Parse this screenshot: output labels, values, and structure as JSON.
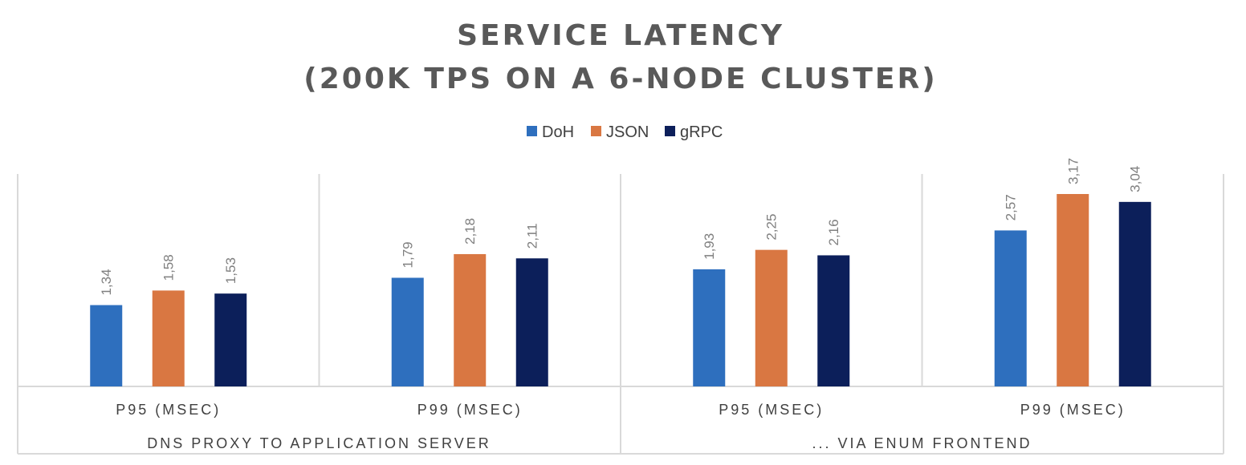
{
  "chart_data": {
    "type": "bar",
    "title": "SERVICE LATENCY",
    "subtitle": "(200K TPS ON A 6-NODE CLUSTER)",
    "categories": [
      "P95 (MSEC)",
      "P99 (MSEC)",
      "P95 (MSEC)",
      "P99 (MSEC)"
    ],
    "groups": [
      {
        "label": "DNS PROXY TO APPLICATION SERVER",
        "categories": [
          0,
          1
        ]
      },
      {
        "label": "... VIA ENUM FRONTEND",
        "categories": [
          2,
          3
        ]
      }
    ],
    "series": [
      {
        "name": "DoH",
        "color": "#2e6fbe",
        "values": [
          1.34,
          1.79,
          1.93,
          2.57
        ],
        "labels": [
          "1,34",
          "1,79",
          "1,93",
          "2,57"
        ]
      },
      {
        "name": "JSON",
        "color": "#d97742",
        "values": [
          1.58,
          2.18,
          2.25,
          3.17
        ],
        "labels": [
          "1,58",
          "2,18",
          "2,25",
          "3,17"
        ]
      },
      {
        "name": "gRPC",
        "color": "#0c1f5a",
        "values": [
          1.53,
          2.11,
          2.16,
          3.04
        ],
        "labels": [
          "1,53",
          "2,11",
          "2,16",
          "3,04"
        ]
      }
    ],
    "ylim": [
      0,
      3.5
    ],
    "legend": "top-center",
    "grid": false,
    "xlabel": "",
    "ylabel": ""
  }
}
